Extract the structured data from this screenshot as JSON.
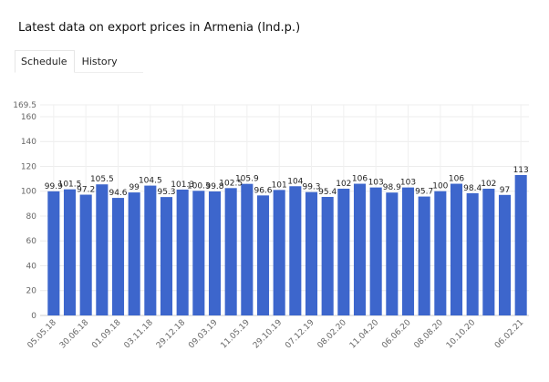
{
  "title": "Latest data on export prices in Armenia (Ind.p.)",
  "tabs": [
    {
      "label": "Schedule",
      "active": true
    },
    {
      "label": "History",
      "active": false
    }
  ],
  "chart_data": {
    "type": "bar",
    "title": "",
    "xlabel": "",
    "ylabel": "",
    "ylim": [
      0,
      169.5
    ],
    "yticks": [
      0,
      20,
      40,
      60,
      80,
      100,
      120,
      140,
      160,
      169.5
    ],
    "grid": true,
    "bar_color": "#3d66cc",
    "categories": [
      "05.05.18",
      "",
      "30.06.18",
      "",
      "01.09.18",
      "",
      "03.11.18",
      "",
      "29.12.18",
      "",
      "09.03.19",
      "",
      "11.05.19",
      "",
      "29.10.19",
      "",
      "07.12.19",
      "",
      "08.02.20",
      "",
      "11.04.20",
      "",
      "06.06.20",
      "",
      "08.08.20",
      "",
      "10.10.20",
      "",
      "",
      "06.02.21"
    ],
    "values": [
      99.9,
      101.5,
      97.2,
      105.5,
      94.6,
      99,
      104.5,
      95.3,
      101.3,
      100.3,
      99.8,
      102.5,
      105.9,
      96.6,
      101,
      104,
      99.3,
      95.4,
      102,
      106,
      103,
      98.9,
      103,
      95.7,
      100,
      106,
      98.4,
      102,
      97,
      113
    ],
    "value_labels": [
      "99.9",
      "101.5",
      "97.2",
      "105.5",
      "94.6",
      "99",
      "104.5",
      "95.3",
      "101.3",
      "100.3",
      "99.8",
      "102.5",
      "105.9",
      "96.6",
      "101",
      "104",
      "99.3",
      "95.4",
      "102",
      "106",
      "103",
      "98.9",
      "103",
      "95.7",
      "100",
      "106",
      "98.4",
      "102",
      "97",
      "113"
    ]
  }
}
